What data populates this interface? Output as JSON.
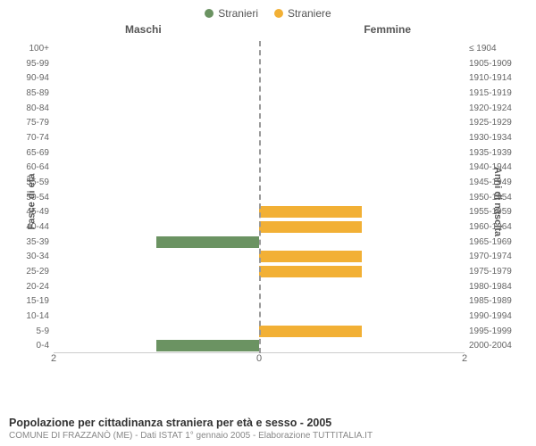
{
  "chart": {
    "type": "population-pyramid",
    "legend": {
      "male": {
        "label": "Stranieri",
        "color": "#6b9362"
      },
      "female": {
        "label": "Straniere",
        "color": "#f2b035"
      }
    },
    "headers": {
      "left": "Maschi",
      "right": "Femmine"
    },
    "y_title_left": "Fasce di età",
    "y_title_right": "Anni di nascita",
    "x_max": 2,
    "x_ticks": [
      2,
      0,
      2
    ],
    "center_line_color": "#999999",
    "grid_color": "#cccccc",
    "background": "#ffffff",
    "label_color": "#666666",
    "label_fontsize": 10,
    "title_fontsize": 13,
    "rows": [
      {
        "age": "100+",
        "birth": "≤ 1904",
        "m": 0,
        "f": 0
      },
      {
        "age": "95-99",
        "birth": "1905-1909",
        "m": 0,
        "f": 0
      },
      {
        "age": "90-94",
        "birth": "1910-1914",
        "m": 0,
        "f": 0
      },
      {
        "age": "85-89",
        "birth": "1915-1919",
        "m": 0,
        "f": 0
      },
      {
        "age": "80-84",
        "birth": "1920-1924",
        "m": 0,
        "f": 0
      },
      {
        "age": "75-79",
        "birth": "1925-1929",
        "m": 0,
        "f": 0
      },
      {
        "age": "70-74",
        "birth": "1930-1934",
        "m": 0,
        "f": 0
      },
      {
        "age": "65-69",
        "birth": "1935-1939",
        "m": 0,
        "f": 0
      },
      {
        "age": "60-64",
        "birth": "1940-1944",
        "m": 0,
        "f": 0
      },
      {
        "age": "55-59",
        "birth": "1945-1949",
        "m": 0,
        "f": 0
      },
      {
        "age": "50-54",
        "birth": "1950-1954",
        "m": 0,
        "f": 0
      },
      {
        "age": "45-49",
        "birth": "1955-1959",
        "m": 0,
        "f": 1
      },
      {
        "age": "40-44",
        "birth": "1960-1964",
        "m": 0,
        "f": 1
      },
      {
        "age": "35-39",
        "birth": "1965-1969",
        "m": 1,
        "f": 0
      },
      {
        "age": "30-34",
        "birth": "1970-1974",
        "m": 0,
        "f": 1
      },
      {
        "age": "25-29",
        "birth": "1975-1979",
        "m": 0,
        "f": 1
      },
      {
        "age": "20-24",
        "birth": "1980-1984",
        "m": 0,
        "f": 0
      },
      {
        "age": "15-19",
        "birth": "1985-1989",
        "m": 0,
        "f": 0
      },
      {
        "age": "10-14",
        "birth": "1990-1994",
        "m": 0,
        "f": 0
      },
      {
        "age": "5-9",
        "birth": "1995-1999",
        "m": 0,
        "f": 1
      },
      {
        "age": "0-4",
        "birth": "2000-2004",
        "m": 1,
        "f": 0
      }
    ]
  },
  "footer": {
    "title": "Popolazione per cittadinanza straniera per età e sesso - 2005",
    "subtitle": "COMUNE DI FRAZZANÒ (ME) - Dati ISTAT 1° gennaio 2005 - Elaborazione TUTTITALIA.IT"
  }
}
